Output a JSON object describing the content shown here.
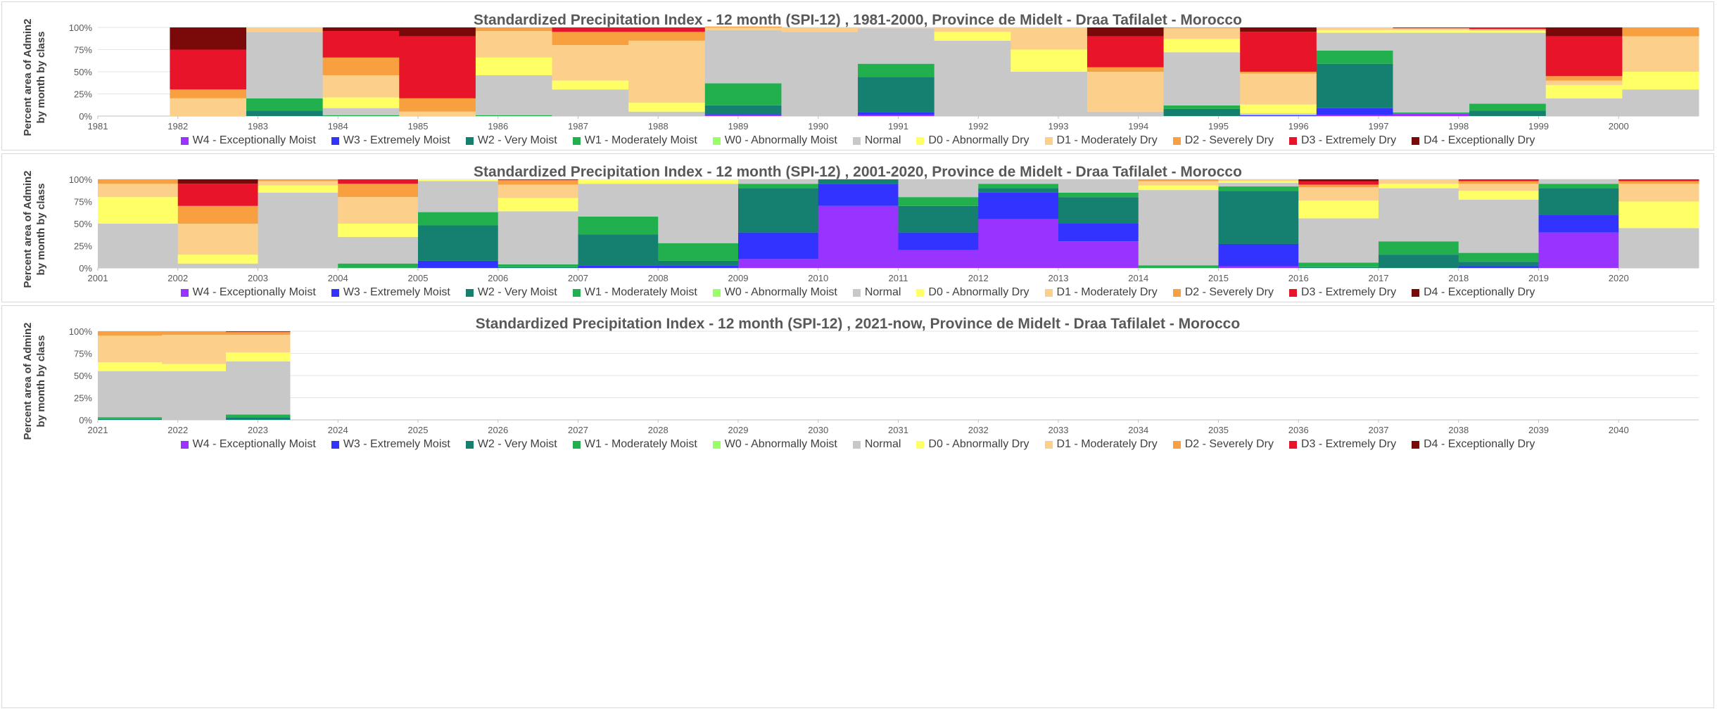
{
  "legend": [
    {
      "label": "W4 - Exceptionally Moist",
      "color": "#9933ff"
    },
    {
      "label": "W3 - Extremely Moist",
      "color": "#3333ff"
    },
    {
      "label": "W2 - Very Moist",
      "color": "#168070"
    },
    {
      "label": "W1 - Moderately Moist",
      "color": "#22b04f"
    },
    {
      "label": "W0 - Abnormally Moist",
      "color": "#99ff66"
    },
    {
      "label": "Normal",
      "color": "#c8c8c8"
    },
    {
      "label": "D0 - Abnormally Dry",
      "color": "#ffff66"
    },
    {
      "label": "D1 - Moderately Dry",
      "color": "#fcd08a"
    },
    {
      "label": "D2 - Severely Dry",
      "color": "#f8a040"
    },
    {
      "label": "D3 - Extremely Dry",
      "color": "#e8142a"
    },
    {
      "label": "D4 - Exceptionally Dry",
      "color": "#7a0a0a"
    }
  ],
  "chart_data": [
    {
      "type": "area",
      "title": "Standardized Precipitation Index - 12 month (SPI-12) , 1981-2000, Province de Midelt - Draa Tafilalet - Morocco",
      "ylabel_line1": "Percent area of Admin2",
      "ylabel_line2": "by month by class",
      "y_ticks": [
        "0%",
        "25%",
        "50%",
        "75%",
        "100%"
      ],
      "ylim": [
        0,
        100
      ],
      "x_ticks": [
        "1981",
        "1982",
        "1983",
        "1984",
        "1985",
        "1986",
        "1987",
        "1988",
        "1989",
        "1990",
        "1991",
        "1992",
        "1993",
        "1994",
        "1995",
        "1996",
        "1997",
        "1998",
        "1999",
        "2000"
      ],
      "x_start": 1981,
      "data_start": 1981.9,
      "data_end": 2001,
      "series": [
        {
          "name": "W4 - Exceptionally Moist",
          "values": [
            0,
            0,
            0,
            0,
            0,
            0,
            0,
            1,
            0,
            1,
            0,
            0,
            0,
            0,
            0,
            1,
            3,
            0,
            0,
            0
          ]
        },
        {
          "name": "W3 - Extremely Moist",
          "values": [
            0,
            0,
            0,
            0,
            0,
            0,
            0,
            1,
            0,
            3,
            0,
            0,
            0,
            0,
            1,
            8,
            0,
            0,
            0,
            0
          ]
        },
        {
          "name": "W2 - Very Moist",
          "values": [
            0,
            6,
            0,
            0,
            0,
            0,
            0,
            10,
            0,
            40,
            0,
            0,
            0,
            8,
            0,
            50,
            0,
            6,
            0,
            0
          ]
        },
        {
          "name": "W1 - Moderately Moist",
          "values": [
            0,
            14,
            1,
            0,
            1,
            0,
            0,
            25,
            0,
            15,
            0,
            0,
            0,
            4,
            0,
            15,
            1,
            8,
            0,
            0
          ]
        },
        {
          "name": "W0 - Abnormally Moist",
          "values": [
            0,
            0,
            0,
            0,
            0,
            0,
            0,
            0,
            0,
            0,
            0,
            0,
            0,
            0,
            0,
            0,
            0,
            0,
            0,
            0
          ]
        },
        {
          "name": "Normal",
          "values": [
            0,
            75,
            8,
            0,
            45,
            30,
            5,
            60,
            95,
            40,
            85,
            50,
            5,
            60,
            2,
            20,
            90,
            80,
            20,
            30
          ]
        },
        {
          "name": "D0 - Abnormally Dry",
          "values": [
            0,
            0,
            12,
            0,
            20,
            10,
            10,
            0,
            0,
            0,
            10,
            25,
            0,
            15,
            10,
            3,
            3,
            2,
            15,
            20
          ]
        },
        {
          "name": "D1 - Moderately Dry",
          "values": [
            20,
            5,
            25,
            5,
            30,
            40,
            70,
            3,
            5,
            1,
            5,
            25,
            45,
            12,
            35,
            3,
            2,
            2,
            5,
            40
          ]
        },
        {
          "name": "D2 - Severely Dry",
          "values": [
            10,
            0,
            20,
            15,
            4,
            15,
            10,
            1,
            0,
            0,
            0,
            0,
            5,
            1,
            2,
            0,
            0,
            0,
            5,
            10
          ]
        },
        {
          "name": "D3 - Extremely Dry",
          "values": [
            45,
            0,
            30,
            70,
            0,
            5,
            5,
            0,
            0,
            0,
            0,
            0,
            35,
            0,
            45,
            0,
            1,
            2,
            45,
            0
          ]
        },
        {
          "name": "D4 - Exceptionally Dry",
          "values": [
            25,
            0,
            4,
            10,
            0,
            0,
            0,
            0,
            0,
            0,
            0,
            0,
            10,
            0,
            5,
            0,
            0,
            0,
            10,
            0
          ]
        }
      ]
    },
    {
      "type": "area",
      "title": "Standardized Precipitation Index - 12 month (SPI-12) , 2001-2020, Province de Midelt - Draa Tafilalet - Morocco",
      "ylabel_line1": "Percent area of Admin2",
      "ylabel_line2": "by month by class",
      "y_ticks": [
        "0%",
        "25%",
        "50%",
        "75%",
        "100%"
      ],
      "ylim": [
        0,
        100
      ],
      "x_ticks": [
        "2001",
        "2002",
        "2003",
        "2004",
        "2005",
        "2006",
        "2007",
        "2008",
        "2009",
        "2010",
        "2011",
        "2012",
        "2013",
        "2014",
        "2015",
        "2016",
        "2017",
        "2018",
        "2019",
        "2020"
      ],
      "x_start": 2001,
      "data_start": 2001,
      "data_end": 2021,
      "series": [
        {
          "name": "W4 - Exceptionally Moist",
          "values": [
            0,
            0,
            0,
            0,
            0,
            0,
            0,
            0,
            10,
            70,
            20,
            55,
            30,
            0,
            2,
            0,
            0,
            0,
            40,
            0
          ]
        },
        {
          "name": "W3 - Extremely Moist",
          "values": [
            0,
            0,
            0,
            0,
            8,
            0,
            3,
            3,
            30,
            25,
            20,
            30,
            20,
            0,
            25,
            0,
            0,
            2,
            20,
            0
          ]
        },
        {
          "name": "W2 - Very Moist",
          "values": [
            0,
            0,
            0,
            0,
            40,
            1,
            35,
            5,
            50,
            5,
            30,
            5,
            30,
            0,
            60,
            1,
            15,
            5,
            30,
            0
          ]
        },
        {
          "name": "W1 - Moderately Moist",
          "values": [
            0,
            0,
            0,
            5,
            15,
            3,
            20,
            20,
            5,
            0,
            10,
            5,
            5,
            3,
            5,
            5,
            15,
            10,
            5,
            0
          ]
        },
        {
          "name": "W0 - Abnormally Moist",
          "values": [
            0,
            0,
            0,
            0,
            0,
            0,
            0,
            0,
            0,
            0,
            0,
            0,
            0,
            0,
            0,
            0,
            0,
            0,
            0,
            0
          ]
        },
        {
          "name": "Normal",
          "values": [
            50,
            5,
            85,
            30,
            35,
            60,
            37,
            67,
            5,
            0,
            20,
            5,
            15,
            85,
            4,
            50,
            60,
            60,
            5,
            45
          ]
        },
        {
          "name": "D0 - Abnormally Dry",
          "values": [
            30,
            10,
            8,
            15,
            2,
            15,
            5,
            5,
            0,
            0,
            0,
            0,
            0,
            5,
            2,
            20,
            5,
            10,
            0,
            30
          ]
        },
        {
          "name": "D1 - Moderately Dry",
          "values": [
            15,
            35,
            5,
            30,
            0,
            15,
            0,
            0,
            0,
            0,
            0,
            0,
            0,
            5,
            2,
            15,
            5,
            8,
            0,
            20
          ]
        },
        {
          "name": "D2 - Severely Dry",
          "values": [
            5,
            20,
            2,
            15,
            0,
            5,
            0,
            0,
            0,
            0,
            0,
            0,
            0,
            2,
            0,
            3,
            0,
            3,
            0,
            3
          ]
        },
        {
          "name": "D3 - Extremely Dry",
          "values": [
            0,
            25,
            0,
            5,
            0,
            1,
            0,
            0,
            0,
            0,
            0,
            0,
            0,
            0,
            0,
            4,
            0,
            2,
            0,
            2
          ]
        },
        {
          "name": "D4 - Exceptionally Dry",
          "values": [
            0,
            5,
            0,
            0,
            0,
            0,
            0,
            0,
            0,
            0,
            0,
            0,
            0,
            0,
            0,
            2,
            0,
            0,
            0,
            0
          ]
        }
      ]
    },
    {
      "type": "area",
      "title": "Standardized Precipitation Index - 12 month (SPI-12) , 2021-now, Province de Midelt - Draa Tafilalet - Morocco",
      "ylabel_line1": "Percent area of Admin2",
      "ylabel_line2": "by month by class",
      "y_ticks": [
        "0%",
        "25%",
        "50%",
        "75%",
        "100%"
      ],
      "ylim": [
        0,
        100
      ],
      "x_ticks": [
        "2021",
        "2022",
        "2023",
        "2024",
        "2025",
        "2026",
        "2027",
        "2028",
        "2029",
        "2030",
        "2031",
        "2032",
        "2033",
        "2034",
        "2035",
        "2036",
        "2037",
        "2038",
        "2039",
        "2040"
      ],
      "x_start": 2021,
      "data_start": 2021,
      "data_end": 2023.4,
      "series": [
        {
          "name": "W4 - Exceptionally Moist",
          "values": [
            0,
            0,
            0
          ]
        },
        {
          "name": "W3 - Extremely Moist",
          "values": [
            0,
            0,
            0
          ]
        },
        {
          "name": "W2 - Very Moist",
          "values": [
            1,
            0,
            3
          ]
        },
        {
          "name": "W1 - Moderately Moist",
          "values": [
            2,
            0,
            3
          ]
        },
        {
          "name": "W0 - Abnormally Moist",
          "values": [
            0,
            0,
            0
          ]
        },
        {
          "name": "Normal",
          "values": [
            52,
            55,
            60
          ]
        },
        {
          "name": "D0 - Abnormally Dry",
          "values": [
            10,
            8,
            10
          ]
        },
        {
          "name": "D1 - Moderately Dry",
          "values": [
            30,
            33,
            20
          ]
        },
        {
          "name": "D2 - Severely Dry",
          "values": [
            5,
            4,
            3
          ]
        },
        {
          "name": "D3 - Extremely Dry",
          "values": [
            0,
            0,
            1
          ]
        },
        {
          "name": "D4 - Exceptionally Dry",
          "values": [
            0,
            0,
            0
          ]
        }
      ]
    }
  ]
}
